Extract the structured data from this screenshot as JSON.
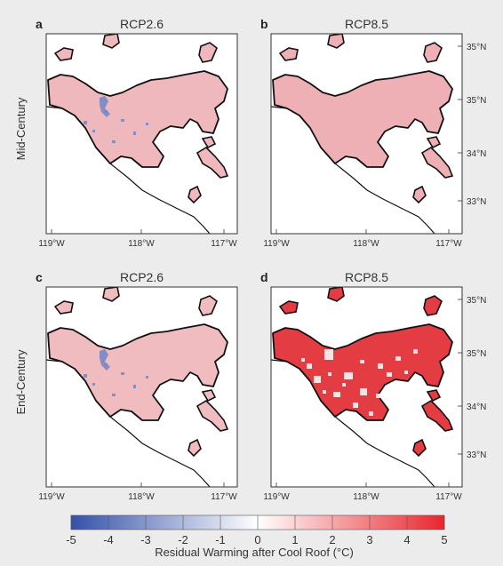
{
  "figure": {
    "panels": [
      {
        "letter": "a",
        "title": "RCP2.6",
        "fill": "#efb8bc",
        "speckle": "blue",
        "show_lat": false
      },
      {
        "letter": "b",
        "title": "RCP8.5",
        "fill": "#eeb0b4",
        "speckle": "none",
        "show_lat": true
      },
      {
        "letter": "c",
        "title": "RCP2.6",
        "fill": "#f0bcc0",
        "speckle": "blue",
        "show_lat": false
      },
      {
        "letter": "d",
        "title": "RCP8.5",
        "fill": "#e43c43",
        "speckle": "white",
        "show_lat": true
      }
    ],
    "row_labels": [
      "Mid-Century",
      "End-Century"
    ],
    "lon_ticks": [
      "119°W",
      "118°W",
      "117°W"
    ],
    "lat_ticks": [
      "35°N",
      "35°N",
      "34°N",
      "33°N"
    ],
    "colorbar": {
      "ticks": [
        "-5",
        "-4",
        "-3",
        "-2",
        "-1",
        "0",
        "1",
        "2",
        "3",
        "4",
        "5"
      ],
      "label": "Residual Warming after Cool Roof (°C)",
      "min_color": "#3451a8",
      "mid_color": "#ffffff",
      "max_color": "#e8262d"
    }
  }
}
